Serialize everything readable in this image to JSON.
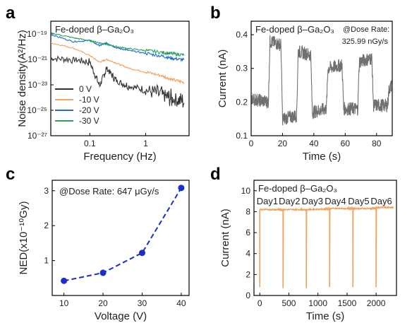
{
  "chart_data": [
    {
      "id": "a",
      "panel_label": "a",
      "type": "line",
      "title": "Fe-doped β–Ga₂O₃",
      "xlabel": "Frequency (Hz)",
      "ylabel": "Noise density(A²/Hz)",
      "xscale": "log",
      "yscale": "log",
      "xlim": [
        0.02,
        6
      ],
      "ylim": [
        1e-27,
        1e-18
      ],
      "x_ticks": [
        {
          "v": 0.1,
          "label": "0.1"
        },
        {
          "v": 1,
          "label": "1"
        }
      ],
      "y_ticks": [
        {
          "v": 1e-19,
          "label": "10⁻¹⁹"
        },
        {
          "v": 1e-21,
          "label": "10⁻²¹"
        },
        {
          "v": 1e-23,
          "label": "10⁻²³"
        },
        {
          "v": 1e-25,
          "label": "10⁻²⁵"
        },
        {
          "v": 1e-27,
          "label": "10⁻²⁷"
        }
      ],
      "legend_position": "lower-left",
      "series": [
        {
          "name": "0 V",
          "color": "#333333",
          "x": [
            0.02,
            0.05,
            0.1,
            0.15,
            0.2,
            0.3,
            0.5,
            1,
            2,
            3,
            5
          ],
          "y": [
            1.2e-21,
            1e-21,
            6e-22,
            8e-24,
            2e-22,
            2e-23,
            8e-24,
            4e-24,
            1.5e-24,
            8e-25,
            5e-25
          ]
        },
        {
          "name": "-10 V",
          "color": "#f4a261",
          "x": [
            0.02,
            0.05,
            0.1,
            0.15,
            0.2,
            0.3,
            0.5,
            1,
            2,
            3,
            5
          ],
          "y": [
            2e-20,
            8e-21,
            2e-21,
            6e-22,
            1e-21,
            5e-22,
            2e-22,
            1e-22,
            5e-23,
            2.5e-23,
            1.5e-23
          ]
        },
        {
          "name": "-20 V",
          "color": "#1f6fd1",
          "x": [
            0.02,
            0.05,
            0.1,
            0.15,
            0.2,
            0.3,
            0.5,
            1,
            2,
            3,
            5
          ],
          "y": [
            9e-20,
            2.5e-20,
            3e-20,
            1.2e-20,
            2e-20,
            8e-21,
            5e-21,
            3e-21,
            1.8e-21,
            1.2e-21,
            9e-22
          ]
        },
        {
          "name": "-30 V",
          "color": "#2ca05a",
          "x": [
            0.02,
            0.05,
            0.1,
            0.15,
            0.2,
            0.3,
            0.5,
            1,
            2,
            3,
            5
          ],
          "y": [
            1.2e-19,
            5e-20,
            3e-20,
            2e-20,
            1.5e-20,
            1e-20,
            7e-21,
            5e-21,
            3.5e-21,
            2.8e-21,
            2.2e-21
          ]
        }
      ]
    },
    {
      "id": "b",
      "panel_label": "b",
      "type": "line",
      "title": "Fe-doped β–Ga₂O₃",
      "annotation_prefix": "@Dose Rate:",
      "annotation_value": "325.99 nGy/s",
      "xlabel": "Time (s)",
      "ylabel": "Current (nA)",
      "xlim": [
        0,
        90
      ],
      "ylim": [
        0.1,
        0.44
      ],
      "x_ticks": [
        {
          "v": 0,
          "label": "0"
        },
        {
          "v": 20,
          "label": "20"
        },
        {
          "v": 40,
          "label": "40"
        },
        {
          "v": 60,
          "label": "60"
        },
        {
          "v": 80,
          "label": "80"
        }
      ],
      "y_ticks": [
        {
          "v": 0.1,
          "label": "0.1"
        },
        {
          "v": 0.2,
          "label": "0.2"
        },
        {
          "v": 0.3,
          "label": "0.3"
        },
        {
          "v": 0.4,
          "label": "0.4"
        }
      ],
      "series": [
        {
          "name": "",
          "color": "#707070",
          "x": [
            0,
            11,
            12,
            19,
            20,
            29,
            30,
            38,
            39,
            48,
            49,
            58,
            59,
            68,
            69,
            77,
            78,
            87,
            88,
            90
          ],
          "y": [
            0.21,
            0.2,
            0.38,
            0.37,
            0.15,
            0.16,
            0.35,
            0.34,
            0.17,
            0.18,
            0.3,
            0.31,
            0.18,
            0.18,
            0.32,
            0.33,
            0.19,
            0.19,
            0.24,
            0.25
          ]
        }
      ]
    },
    {
      "id": "c",
      "panel_label": "c",
      "type": "scatter",
      "annotation": "@Dose Rate: 647 μGy/s",
      "xlabel": "Voltage (V)",
      "ylabel": "NED(x10⁻¹⁰Gy)",
      "xlim": [
        7,
        42
      ],
      "ylim": [
        0,
        3.3
      ],
      "x_ticks": [
        {
          "v": 10,
          "label": "10"
        },
        {
          "v": 20,
          "label": "20"
        },
        {
          "v": 30,
          "label": "30"
        },
        {
          "v": 40,
          "label": "40"
        }
      ],
      "y_ticks": [
        {
          "v": 1,
          "label": "1"
        },
        {
          "v": 2,
          "label": "2"
        },
        {
          "v": 3,
          "label": "3"
        }
      ],
      "series": [
        {
          "name": "",
          "color": "#1a2fc8",
          "x": [
            10,
            20,
            30,
            40
          ],
          "y": [
            0.42,
            0.65,
            1.22,
            3.08
          ]
        }
      ]
    },
    {
      "id": "d",
      "panel_label": "d",
      "type": "line",
      "title": "Fe-doped β–Ga₂O₃",
      "xlabel": "Time (s)",
      "ylabel": "Current (nA)",
      "xlim": [
        -100,
        2350
      ],
      "ylim": [
        0,
        11
      ],
      "x_ticks": [
        {
          "v": 0,
          "label": "0"
        },
        {
          "v": 500,
          "label": "500"
        },
        {
          "v": 1000,
          "label": "1000"
        },
        {
          "v": 1500,
          "label": "1500"
        },
        {
          "v": 2000,
          "label": "2000"
        }
      ],
      "y_ticks": [
        {
          "v": 0,
          "label": "0"
        },
        {
          "v": 2,
          "label": "2"
        },
        {
          "v": 4,
          "label": "4"
        },
        {
          "v": 6,
          "label": "6"
        },
        {
          "v": 8,
          "label": "8"
        },
        {
          "v": 10,
          "label": "10"
        }
      ],
      "day_labels": [
        {
          "label": "Day1",
          "x": 130
        },
        {
          "label": "Day2",
          "x": 510
        },
        {
          "label": "Day3",
          "x": 905
        },
        {
          "label": "Day4",
          "x": 1300
        },
        {
          "label": "Day5",
          "x": 1700
        },
        {
          "label": "Day6",
          "x": 2090
        }
      ],
      "series": [
        {
          "name": "",
          "color": "#f0a35e",
          "x": [
            0,
            0,
            5,
            300,
            300,
            400,
            400,
            405,
            700,
            700,
            800,
            800,
            805,
            1100,
            1100,
            1200,
            1200,
            1205,
            1500,
            1500,
            1600,
            1600,
            1605,
            1900,
            1900,
            2000,
            2000,
            2005,
            2300
          ],
          "y": [
            0.8,
            8.1,
            8.2,
            8.2,
            8.2,
            8.2,
            0.7,
            8.2,
            8.2,
            8.2,
            8.2,
            0.7,
            8.2,
            8.25,
            8.25,
            8.25,
            0.8,
            8.3,
            8.3,
            8.3,
            8.3,
            0.8,
            8.3,
            8.3,
            8.3,
            8.3,
            0.8,
            8.4,
            8.4
          ]
        }
      ]
    }
  ]
}
